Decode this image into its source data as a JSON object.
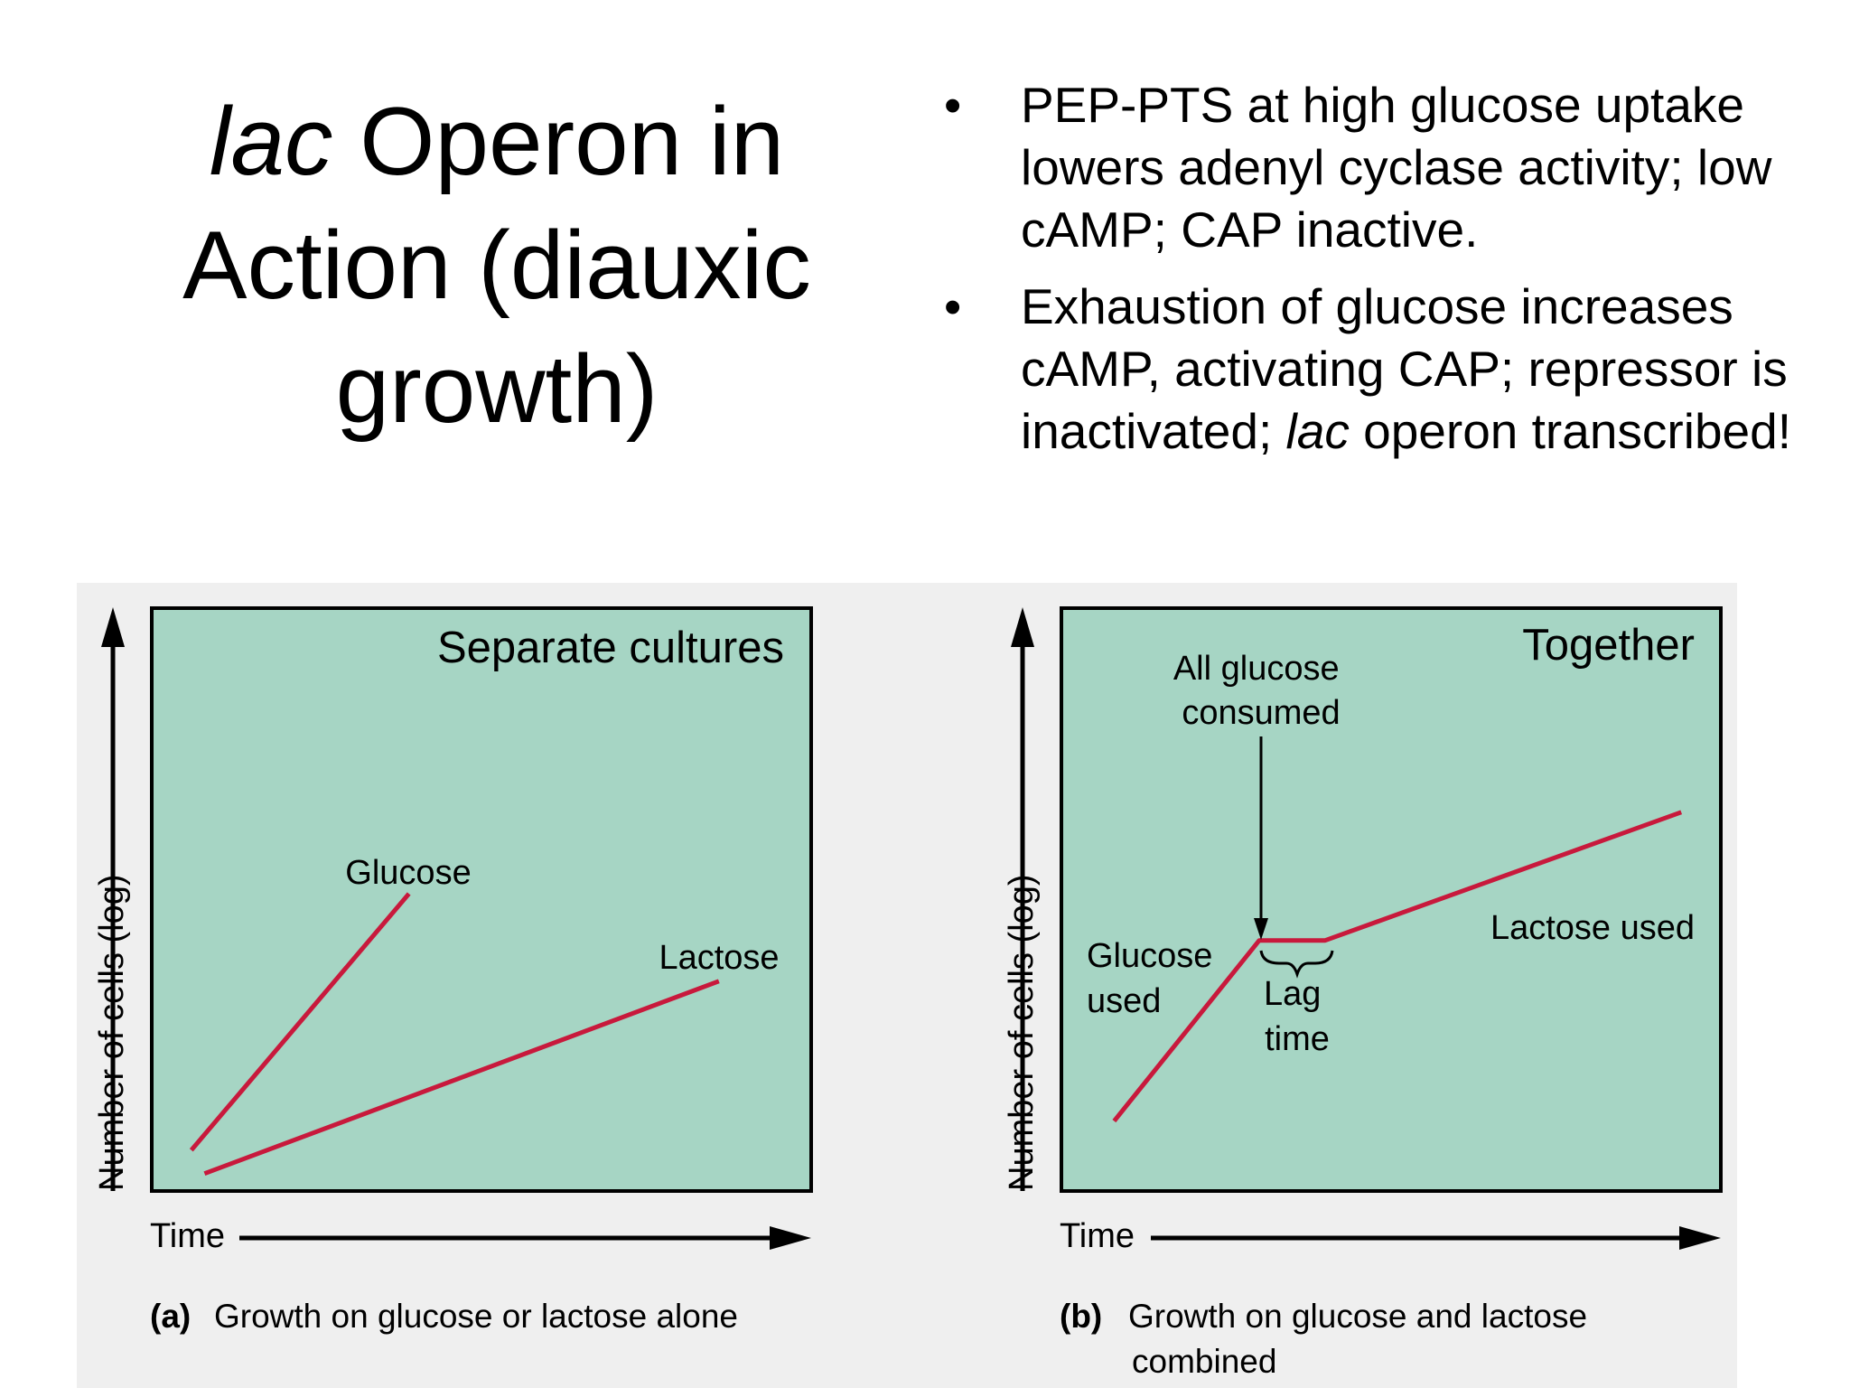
{
  "slide": {
    "title_italic": "lac",
    "title_rest": " Operon in Action (diauxic growth)",
    "bullets": [
      {
        "text": "PEP-PTS at high glucose uptake lowers adenyl cyclase activity; low cAMP; CAP inactive."
      },
      {
        "before": "Exhaustion of glucose increases cAMP, activating CAP; repressor is inactivated; ",
        "italic": "lac",
        "after": " operon transcribed!"
      }
    ]
  },
  "colors": {
    "panel_bg": "#efefef",
    "plot_bg": "#a6d5c4",
    "curve": "#c8193c",
    "axis": "#000000"
  },
  "chart_data": [
    {
      "type": "line",
      "title": "Separate cultures",
      "xlabel": "Time",
      "ylabel": "Number of cells (log)",
      "caption_tag": "(a)",
      "caption": "Growth on glucose or lactose alone",
      "xlim": [
        0,
        10
      ],
      "ylim": [
        0,
        10
      ],
      "series": [
        {
          "name": "Glucose",
          "x": [
            0.6,
            3.9
          ],
          "y": [
            0.7,
            5.1
          ]
        },
        {
          "name": "Lactose",
          "x": [
            0.8,
            8.6
          ],
          "y": [
            0.3,
            3.6
          ]
        }
      ]
    },
    {
      "type": "line",
      "title": "Together",
      "xlabel": "Time",
      "ylabel": "Number of cells (log)",
      "caption_tag": "(b)",
      "caption": "Growth on glucose and lactose combined",
      "xlim": [
        0,
        10
      ],
      "ylim": [
        0,
        10
      ],
      "series": [
        {
          "name": "",
          "x": [
            0.8,
            3.0,
            4.0,
            9.4
          ],
          "y": [
            1.2,
            4.3,
            4.3,
            6.5
          ]
        }
      ],
      "annotations": {
        "arrow_label": "All glucose consumed",
        "phase1": "Glucose used",
        "lag": "Lag time",
        "phase2": "Lactose used"
      }
    }
  ]
}
